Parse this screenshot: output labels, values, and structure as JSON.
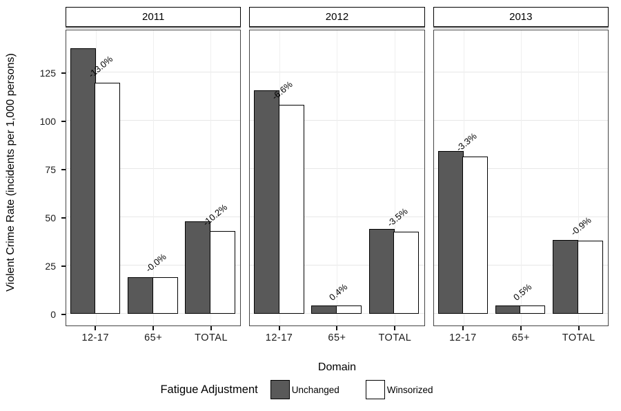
{
  "chart_data": {
    "type": "bar",
    "title": "",
    "xlabel": "Domain",
    "ylabel": "Violent Crime Rate (incidents per 1,000 persons)",
    "facets": [
      "2011",
      "2012",
      "2013"
    ],
    "categories": [
      "12-17",
      "65+",
      "TOTAL"
    ],
    "yticks": [
      0,
      25,
      50,
      75,
      100,
      125
    ],
    "ylim": [
      0,
      147
    ],
    "grid": true,
    "series": [
      {
        "name": "Unchanged",
        "fill": "#595959",
        "values": {
          "2011": [
            137.5,
            19.0,
            47.7
          ],
          "2012": [
            115.7,
            4.3,
            43.9
          ],
          "2013": [
            84.3,
            4.2,
            38.2
          ]
        }
      },
      {
        "name": "Winsorized",
        "fill": "#ffffff",
        "values": {
          "2011": [
            119.6,
            19.0,
            42.9
          ],
          "2012": [
            108.1,
            4.3,
            42.4
          ],
          "2013": [
            81.5,
            4.2,
            37.9
          ]
        }
      }
    ],
    "bar_labels": {
      "2011": [
        "-13.0%",
        "-0.0%",
        "-10.2%"
      ],
      "2012": [
        "-6.6%",
        "0.4%",
        "-3.5%"
      ],
      "2013": [
        "-3.3%",
        "0.5%",
        "-0.9%"
      ]
    },
    "legend": {
      "title": "Fatigue Adjustment",
      "position": "bottom",
      "entries": [
        {
          "label": "Unchanged",
          "fill": "#595959"
        },
        {
          "label": "Winsorized",
          "fill": "#ffffff"
        }
      ]
    },
    "colors": {
      "bar_border": "#000000",
      "panel_border": "#444444",
      "gridline": "#e7e7e7",
      "strip_underline": "#8f8f8f"
    }
  }
}
